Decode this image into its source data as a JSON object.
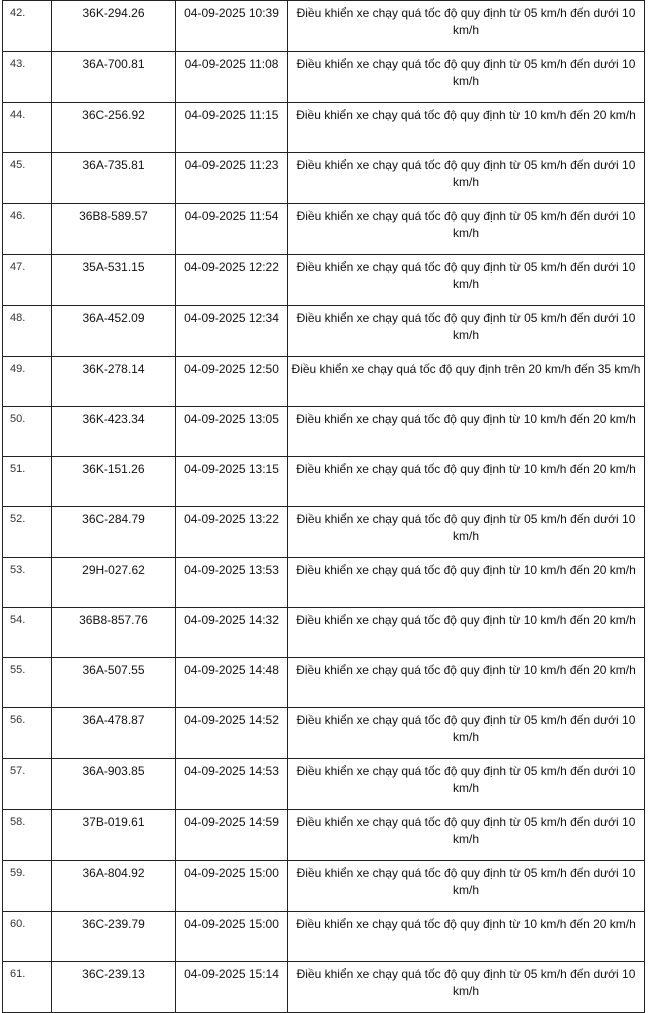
{
  "rows": [
    {
      "stt": "42.",
      "plate": "36K-294.26",
      "time": "04-09-2025 10:39",
      "violation": "Điều khiển xe chạy quá tốc độ quy định từ 05 km/h đến dưới 10 km/h"
    },
    {
      "stt": "43.",
      "plate": "36A-700.81",
      "time": "04-09-2025 11:08",
      "violation": "Điều khiển xe chạy quá tốc độ quy định từ 05 km/h đến dưới 10 km/h"
    },
    {
      "stt": "44.",
      "plate": "36C-256.92",
      "time": "04-09-2025 11:15",
      "violation": "Điều khiển xe chạy quá tốc độ quy định từ 10 km/h đến 20 km/h"
    },
    {
      "stt": "45.",
      "plate": "36A-735.81",
      "time": "04-09-2025 11:23",
      "violation": "Điều khiển xe chạy quá tốc độ quy định từ 05 km/h đến dưới 10 km/h"
    },
    {
      "stt": "46.",
      "plate": "36B8-589.57",
      "time": "04-09-2025 11:54",
      "violation": "Điều khiển xe chạy quá tốc độ quy định từ 05 km/h đến dưới 10 km/h"
    },
    {
      "stt": "47.",
      "plate": "35A-531.15",
      "time": "04-09-2025 12:22",
      "violation": "Điều khiển xe chạy quá tốc độ quy định từ 05 km/h đến dưới 10 km/h"
    },
    {
      "stt": "48.",
      "plate": "36A-452.09",
      "time": "04-09-2025 12:34",
      "violation": "Điều khiển xe chạy quá tốc độ quy định từ 05 km/h đến dưới 10 km/h"
    },
    {
      "stt": "49.",
      "plate": "36K-278.14",
      "time": "04-09-2025 12:50",
      "violation": "Điều khiển xe chạy quá tốc độ quy định trên 20 km/h đến 35 km/h"
    },
    {
      "stt": "50.",
      "plate": "36K-423.34",
      "time": "04-09-2025 13:05",
      "violation": "Điều khiển xe chạy quá tốc độ quy định từ 10 km/h đến 20 km/h"
    },
    {
      "stt": "51.",
      "plate": "36K-151.26",
      "time": "04-09-2025 13:15",
      "violation": "Điều khiển xe chạy quá tốc độ quy định từ 10 km/h đến 20 km/h"
    },
    {
      "stt": "52.",
      "plate": "36C-284.79",
      "time": "04-09-2025 13:22",
      "violation": "Điều khiển xe chạy quá tốc độ quy định từ 05 km/h đến dưới 10 km/h"
    },
    {
      "stt": "53.",
      "plate": "29H-027.62",
      "time": "04-09-2025 13:53",
      "violation": "Điều khiển xe chạy quá tốc độ quy định từ 10 km/h đến 20 km/h"
    },
    {
      "stt": "54.",
      "plate": "36B8-857.76",
      "time": "04-09-2025 14:32",
      "violation": "Điều khiển xe chạy quá tốc độ quy định từ 10 km/h đến 20 km/h"
    },
    {
      "stt": "55.",
      "plate": "36A-507.55",
      "time": "04-09-2025 14:48",
      "violation": "Điều khiển xe chạy quá tốc độ quy định từ 10 km/h đến 20 km/h"
    },
    {
      "stt": "56.",
      "plate": "36A-478.87",
      "time": "04-09-2025 14:52",
      "violation": "Điều khiển xe chạy quá tốc độ quy định từ 05 km/h đến dưới 10 km/h"
    },
    {
      "stt": "57.",
      "plate": "36A-903.85",
      "time": "04-09-2025 14:53",
      "violation": "Điều khiển xe chạy quá tốc độ quy định từ 05 km/h đến dưới 10 km/h"
    },
    {
      "stt": "58.",
      "plate": "37B-019.61",
      "time": "04-09-2025 14:59",
      "violation": "Điều khiển xe chạy quá tốc độ quy định từ 05 km/h đến dưới 10 km/h"
    },
    {
      "stt": "59.",
      "plate": "36A-804.92",
      "time": "04-09-2025 15:00",
      "violation": "Điều khiển xe chạy quá tốc độ quy định từ 05 km/h đến dưới 10 km/h"
    },
    {
      "stt": "60.",
      "plate": "36C-239.79",
      "time": "04-09-2025 15:00",
      "violation": "Điều khiển xe chạy quá tốc độ quy định từ 10 km/h đến 20 km/h"
    },
    {
      "stt": "61.",
      "plate": "36C-239.13",
      "time": "04-09-2025 15:14",
      "violation": "Điều khiển xe chạy quá tốc độ quy định từ 05 km/h đến dưới 10 km/h"
    }
  ]
}
